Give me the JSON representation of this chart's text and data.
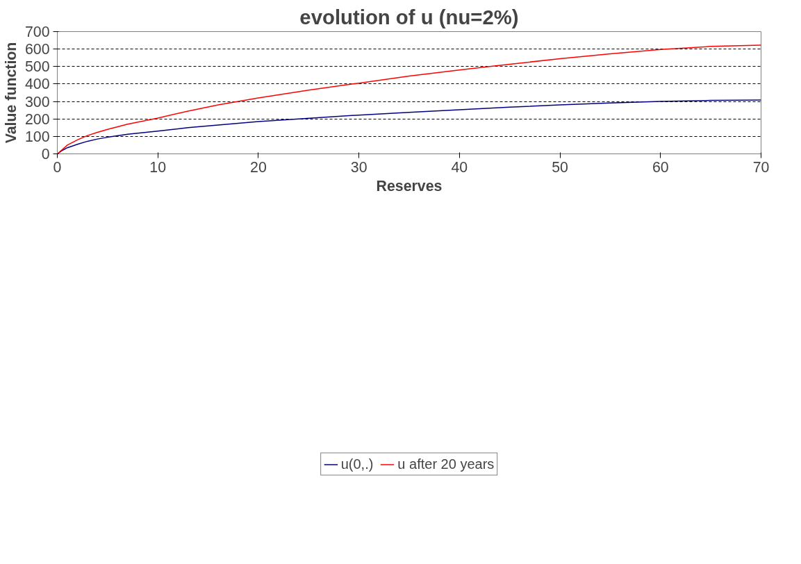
{
  "chart_data": {
    "type": "line",
    "title": "evolution of u (nu=2%)",
    "xlabel": "Reserves",
    "ylabel": "Value function",
    "xlim": [
      0,
      70
    ],
    "ylim": [
      0,
      700
    ],
    "xticks": [
      0,
      10,
      20,
      30,
      40,
      50,
      60,
      70
    ],
    "yticks": [
      0,
      100,
      200,
      300,
      400,
      500,
      600,
      700
    ],
    "grid": "y",
    "legend": "bottom",
    "marker": "none",
    "line_style": "solid",
    "series": [
      {
        "name": "u(0,.)",
        "color": "#000080",
        "x": [
          0,
          0.5,
          1,
          2,
          3,
          4,
          5,
          7,
          10,
          13,
          16,
          20,
          24,
          30,
          35,
          40,
          45,
          50,
          55,
          60,
          65,
          70
        ],
        "values": [
          0,
          20,
          35,
          55,
          72,
          85,
          95,
          112,
          130,
          150,
          165,
          185,
          200,
          222,
          238,
          253,
          267,
          280,
          291,
          300,
          306,
          308
        ]
      },
      {
        "name": "u after 20 years",
        "color": "#ff0000",
        "x": [
          0,
          0.5,
          1,
          2,
          3,
          4,
          5,
          7,
          10,
          13,
          16,
          20,
          25,
          30,
          35,
          40,
          43,
          45,
          50,
          55,
          60,
          65,
          70
        ],
        "values": [
          0,
          25,
          50,
          80,
          105,
          123,
          140,
          170,
          205,
          245,
          280,
          320,
          365,
          405,
          445,
          480,
          500,
          513,
          545,
          573,
          598,
          615,
          622
        ]
      }
    ]
  }
}
